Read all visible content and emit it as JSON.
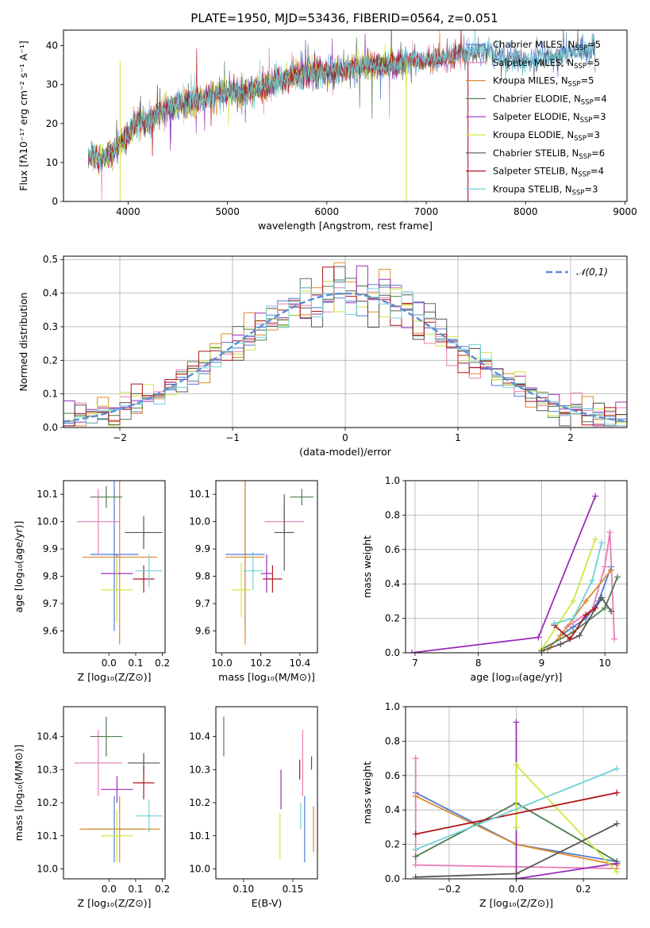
{
  "figure_title": "PLATE=1950, MJD=53436, FIBERID=0564, z=0.051",
  "colors": {
    "Chabrier MILES": "#4c7bd6",
    "Salpeter MILES": "#e87cb6",
    "Kroupa MILES": "#e0892a",
    "Chabrier ELODIE": "#4e7d4e",
    "Salpeter ELODIE": "#9b30b8",
    "Kroupa ELODIE": "#cfe840",
    "Chabrier STELIB": "#555555",
    "Salpeter STELIB": "#b0161c",
    "Kroupa STELIB": "#6fd0d8",
    "Gaussian": "#5b8ed6"
  },
  "chart_data": [
    {
      "id": "spectrum",
      "type": "line",
      "title": "PLATE=1950, MJD=53436, FIBERID=0564, z=0.051",
      "xlabel": "wavelength [Angstrom, rest frame]",
      "ylabel": "Flux [f_λ 10^-17 erg cm^-2 s^-1 A^-1]",
      "xlim": [
        3350,
        9020
      ],
      "ylim": [
        0,
        44
      ],
      "xticks": [
        4000,
        5000,
        6000,
        7000,
        8000,
        9000
      ],
      "yticks": [
        0,
        10,
        20,
        30,
        40
      ],
      "grid": false,
      "legend_position": "top-right",
      "x": [
        3600,
        3700,
        3800,
        3900,
        4000,
        4100,
        4200,
        4300,
        4400,
        4500,
        4600,
        4800,
        5000,
        5200,
        5400,
        5600,
        5800,
        6000,
        6200,
        6400,
        6600,
        6800,
        7000,
        7200,
        7400,
        7600,
        7800,
        8000,
        8200,
        8400,
        8600,
        8700
      ],
      "y": [
        12,
        11,
        12,
        14,
        17,
        21,
        20,
        23,
        24,
        25,
        25,
        27,
        28,
        28,
        30,
        32,
        33,
        33,
        34,
        35,
        35,
        36,
        36,
        37,
        38,
        39,
        37,
        36,
        37,
        38,
        39,
        39
      ],
      "series": [
        {
          "name": "Chabrier MILES",
          "nssp": "5",
          "x_end": 8700
        },
        {
          "name": "Salpeter MILES",
          "nssp": "5",
          "x_end": 7420
        },
        {
          "name": "Kroupa MILES",
          "nssp": "5",
          "x_end": 7420
        },
        {
          "name": "Chabrier ELODIE",
          "nssp": "4",
          "x_end": 6800
        },
        {
          "name": "Salpeter ELODIE",
          "nssp": "3",
          "x_end": 6800
        },
        {
          "name": "Kroupa ELODIE",
          "nssp": "3",
          "x_end": 6800
        },
        {
          "name": "Chabrier STELIB",
          "nssp": "6",
          "x_end": 8700
        },
        {
          "name": "Salpeter STELIB",
          "nssp": "4",
          "x_end": 7420
        },
        {
          "name": "Kroupa STELIB",
          "nssp": "3",
          "x_end": 8700
        }
      ],
      "drops": [
        {
          "name": "Kroupa ELODIE",
          "x": 3920
        },
        {
          "name": "Kroupa ELODIE",
          "x": 6800
        },
        {
          "name": "Salpeter STELIB",
          "x": 7420
        }
      ]
    },
    {
      "id": "residuals",
      "type": "line",
      "xlabel": "(data-model)/error",
      "ylabel": "Normed distribution",
      "xlim": [
        -2.5,
        2.5
      ],
      "ylim": [
        0,
        0.51
      ],
      "xticks": [
        -2,
        -1,
        0,
        1,
        2
      ],
      "yticks": [
        0.0,
        0.1,
        0.2,
        0.3,
        0.4,
        0.5
      ],
      "grid": true,
      "legend_position": "top-right",
      "legend": [
        "𝒩(0,1)"
      ],
      "bin_width": 0.1
    },
    {
      "id": "age_vs_Z",
      "type": "scatter",
      "xlabel": "Z [log10(Z/Z⊙)]",
      "ylabel": "age [log10(age/yr)]",
      "xlim": [
        -0.17,
        0.21
      ],
      "ylim": [
        9.52,
        10.15
      ],
      "xticks": [
        0.0,
        0.1,
        0.2
      ],
      "yticks": [
        9.6,
        9.7,
        9.8,
        9.9,
        10.0,
        10.1
      ],
      "points": [
        {
          "name": "Chabrier MILES",
          "x": 0.02,
          "y": 9.88,
          "xerr": 0.09,
          "yerr": 0.28
        },
        {
          "name": "Salpeter MILES",
          "x": -0.04,
          "y": 10.0,
          "xerr": 0.08,
          "yerr": 0.12
        },
        {
          "name": "Kroupa MILES",
          "x": 0.04,
          "y": 9.87,
          "xerr": 0.14,
          "yerr": 0.32
        },
        {
          "name": "Chabrier ELODIE",
          "x": -0.01,
          "y": 10.09,
          "xerr": 0.06,
          "yerr": 0.04
        },
        {
          "name": "Salpeter ELODIE",
          "x": 0.03,
          "y": 9.81,
          "xerr": 0.06,
          "yerr": 0.07
        },
        {
          "name": "Kroupa ELODIE",
          "x": 0.03,
          "y": 9.75,
          "xerr": 0.06,
          "yerr": 0.12
        },
        {
          "name": "Chabrier STELIB",
          "x": 0.13,
          "y": 9.96,
          "xerr": 0.07,
          "yerr": 0.06
        },
        {
          "name": "Salpeter STELIB",
          "x": 0.13,
          "y": 9.79,
          "xerr": 0.04,
          "yerr": 0.05
        },
        {
          "name": "Kroupa STELIB",
          "x": 0.15,
          "y": 9.82,
          "xerr": 0.05,
          "yerr": 0.06
        }
      ]
    },
    {
      "id": "age_vs_mass",
      "type": "scatter",
      "xlabel": "mass [log10(M/M⊙)]",
      "ylabel": "",
      "xlim": [
        9.97,
        10.49
      ],
      "ylim": [
        9.52,
        10.15
      ],
      "xticks": [
        10.0,
        10.2,
        10.4
      ],
      "yticks": [
        9.6,
        9.7,
        9.8,
        9.9,
        10.0,
        10.1
      ],
      "points": [
        {
          "name": "Chabrier MILES",
          "x": 10.12,
          "y": 9.88,
          "xerr": 0.1,
          "yerr": 0.27
        },
        {
          "name": "Salpeter MILES",
          "x": 10.32,
          "y": 10.0,
          "xerr": 0.1,
          "yerr": 0.05
        },
        {
          "name": "Kroupa MILES",
          "x": 10.12,
          "y": 9.87,
          "xerr": 0.1,
          "yerr": 0.32
        },
        {
          "name": "Chabrier ELODIE",
          "x": 10.41,
          "y": 10.09,
          "xerr": 0.06,
          "yerr": 0.03
        },
        {
          "name": "Salpeter ELODIE",
          "x": 10.23,
          "y": 9.81,
          "xerr": 0.03,
          "yerr": 0.07
        },
        {
          "name": "Kroupa ELODIE",
          "x": 10.1,
          "y": 9.75,
          "xerr": 0.05,
          "yerr": 0.1
        },
        {
          "name": "Chabrier STELIB",
          "x": 10.32,
          "y": 9.96,
          "xerr": 0.05,
          "yerr": 0.14
        },
        {
          "name": "Salpeter STELIB",
          "x": 10.26,
          "y": 9.79,
          "xerr": 0.05,
          "yerr": 0.05
        },
        {
          "name": "Kroupa STELIB",
          "x": 10.16,
          "y": 9.82,
          "xerr": 0.05,
          "yerr": 0.07
        }
      ]
    },
    {
      "id": "weight_vs_age",
      "type": "line",
      "xlabel": "age [log10(age/yr)]",
      "ylabel": "mass weight",
      "xlim": [
        6.85,
        10.35
      ],
      "ylim": [
        0,
        1.0
      ],
      "xticks": [
        7,
        8,
        9,
        10
      ],
      "yticks": [
        0.0,
        0.2,
        0.4,
        0.6,
        0.8,
        1.0
      ],
      "grid": true,
      "series": [
        {
          "name": "Chabrier MILES",
          "x": [
            9.3,
            9.5,
            9.7,
            9.9,
            10.1
          ],
          "y": [
            0.1,
            0.15,
            0.2,
            0.3,
            0.5
          ]
        },
        {
          "name": "Salpeter MILES",
          "x": [
            9.4,
            9.8,
            10.0,
            10.08,
            10.15
          ],
          "y": [
            0.15,
            0.25,
            0.5,
            0.7,
            0.08
          ]
        },
        {
          "name": "Kroupa MILES",
          "x": [
            9.1,
            9.3,
            9.5,
            9.7,
            10.1
          ],
          "y": [
            0.02,
            0.1,
            0.2,
            0.3,
            0.48
          ]
        },
        {
          "name": "Chabrier ELODIE",
          "x": [
            9.0,
            9.5,
            10.0,
            10.2
          ],
          "y": [
            0.02,
            0.12,
            0.26,
            0.44
          ]
        },
        {
          "name": "Salpeter ELODIE",
          "x": [
            6.95,
            8.95,
            9.85
          ],
          "y": [
            0.0,
            0.09,
            0.91
          ]
        },
        {
          "name": "Kroupa ELODIE",
          "x": [
            9.0,
            9.5,
            9.85
          ],
          "y": [
            0.02,
            0.3,
            0.66
          ]
        },
        {
          "name": "Chabrier STELIB",
          "x": [
            9.0,
            9.3,
            9.6,
            9.95,
            10.1
          ],
          "y": [
            0.01,
            0.05,
            0.1,
            0.32,
            0.24
          ]
        },
        {
          "name": "Salpeter STELIB",
          "x": [
            9.2,
            9.45,
            9.7,
            9.85
          ],
          "y": [
            0.16,
            0.08,
            0.22,
            0.26
          ]
        },
        {
          "name": "Kroupa STELIB",
          "x": [
            9.2,
            9.5,
            9.8,
            9.95
          ],
          "y": [
            0.17,
            0.2,
            0.42,
            0.64
          ]
        }
      ]
    },
    {
      "id": "mass_vs_Z",
      "type": "scatter",
      "xlabel": "Z [log10(Z/Z⊙)]",
      "ylabel": "mass [log10(M/M⊙)]",
      "xlim": [
        -0.17,
        0.21
      ],
      "ylim": [
        9.97,
        10.49
      ],
      "xticks": [
        0.0,
        0.1,
        0.2
      ],
      "yticks": [
        10.0,
        10.1,
        10.2,
        10.3,
        10.4
      ],
      "points": [
        {
          "name": "Chabrier MILES",
          "x": 0.02,
          "y": 10.12,
          "xerr": 0.1,
          "yerr": 0.1
        },
        {
          "name": "Salpeter MILES",
          "x": -0.04,
          "y": 10.32,
          "xerr": 0.09,
          "yerr": 0.1
        },
        {
          "name": "Kroupa MILES",
          "x": 0.04,
          "y": 10.12,
          "xerr": 0.15,
          "yerr": 0.1
        },
        {
          "name": "Chabrier ELODIE",
          "x": -0.01,
          "y": 10.4,
          "xerr": 0.06,
          "yerr": 0.06
        },
        {
          "name": "Salpeter ELODIE",
          "x": 0.03,
          "y": 10.24,
          "xerr": 0.06,
          "yerr": 0.04
        },
        {
          "name": "Kroupa ELODIE",
          "x": 0.03,
          "y": 10.1,
          "xerr": 0.06,
          "yerr": 0.08
        },
        {
          "name": "Chabrier STELIB",
          "x": 0.13,
          "y": 10.32,
          "xerr": 0.06,
          "yerr": 0.03
        },
        {
          "name": "Salpeter STELIB",
          "x": 0.13,
          "y": 10.26,
          "xerr": 0.04,
          "yerr": 0.05
        },
        {
          "name": "Kroupa STELIB",
          "x": 0.15,
          "y": 10.16,
          "xerr": 0.05,
          "yerr": 0.05
        }
      ]
    },
    {
      "id": "mass_vs_ebv",
      "type": "scatter",
      "xlabel": "E(B-V)",
      "ylabel": "",
      "xlim": [
        0.072,
        0.175
      ],
      "ylim": [
        9.97,
        10.49
      ],
      "xticks": [
        0.1,
        0.15
      ],
      "yticks": [
        10.0,
        10.1,
        10.2,
        10.3,
        10.4
      ],
      "points": [
        {
          "name": "Chabrier MILES",
          "x": 0.162,
          "y": 10.12,
          "xerr": 0,
          "yerr": 0.1
        },
        {
          "name": "Salpeter MILES",
          "x": 0.16,
          "y": 10.32,
          "xerr": 0,
          "yerr": 0.1
        },
        {
          "name": "Kroupa MILES",
          "x": 0.171,
          "y": 10.12,
          "xerr": 0,
          "yerr": 0.07
        },
        {
          "name": "Chabrier ELODIE",
          "x": 0.08,
          "y": 10.4,
          "xerr": 0,
          "yerr": 0.06
        },
        {
          "name": "Salpeter ELODIE",
          "x": 0.138,
          "y": 10.24,
          "xerr": 0,
          "yerr": 0.06
        },
        {
          "name": "Kroupa ELODIE",
          "x": 0.137,
          "y": 10.1,
          "xerr": 0,
          "yerr": 0.07
        },
        {
          "name": "Chabrier STELIB",
          "x": 0.169,
          "y": 10.32,
          "xerr": 0,
          "yerr": 0.02
        },
        {
          "name": "Salpeter STELIB",
          "x": 0.157,
          "y": 10.3,
          "xerr": 0,
          "yerr": 0.03
        },
        {
          "name": "Kroupa STELIB",
          "x": 0.158,
          "y": 10.16,
          "xerr": 0,
          "yerr": 0.04
        }
      ]
    },
    {
      "id": "weight_vs_Z",
      "type": "line",
      "xlabel": "Z [log10(Z/Z⊙)]",
      "ylabel": "mass weight",
      "xlim": [
        -0.33,
        0.33
      ],
      "ylim": [
        0,
        1.0
      ],
      "xticks": [
        -0.2,
        0.0,
        0.2
      ],
      "yticks": [
        0.0,
        0.2,
        0.4,
        0.6,
        0.8,
        1.0
      ],
      "grid": true,
      "series": [
        {
          "name": "Chabrier MILES",
          "x": [
            -0.3,
            0.0,
            0.3
          ],
          "y": [
            0.5,
            0.2,
            0.1
          ]
        },
        {
          "name": "Salpeter MILES",
          "x": [
            -0.3,
            -0.3,
            0.3
          ],
          "y": [
            0.7,
            0.08,
            0.06
          ]
        },
        {
          "name": "Kroupa MILES",
          "x": [
            -0.3,
            0.0,
            0.3
          ],
          "y": [
            0.48,
            0.2,
            0.08
          ]
        },
        {
          "name": "Chabrier ELODIE",
          "x": [
            -0.3,
            0.0,
            0.3
          ],
          "y": [
            0.13,
            0.44,
            0.1
          ]
        },
        {
          "name": "Salpeter ELODIE",
          "x": [
            0.0,
            0.0,
            0.3
          ],
          "y": [
            0.91,
            0.0,
            0.09
          ]
        },
        {
          "name": "Kroupa ELODIE",
          "x": [
            0.0,
            0.0,
            0.3
          ],
          "y": [
            0.3,
            0.66,
            0.04
          ]
        },
        {
          "name": "Chabrier STELIB",
          "x": [
            -0.3,
            0.0,
            0.3
          ],
          "y": [
            0.01,
            0.03,
            0.32
          ]
        },
        {
          "name": "Salpeter STELIB",
          "x": [
            -0.3,
            0.3
          ],
          "y": [
            0.26,
            0.5
          ]
        },
        {
          "name": "Kroupa STELIB",
          "x": [
            -0.3,
            0.3
          ],
          "y": [
            0.17,
            0.64
          ]
        }
      ]
    }
  ]
}
